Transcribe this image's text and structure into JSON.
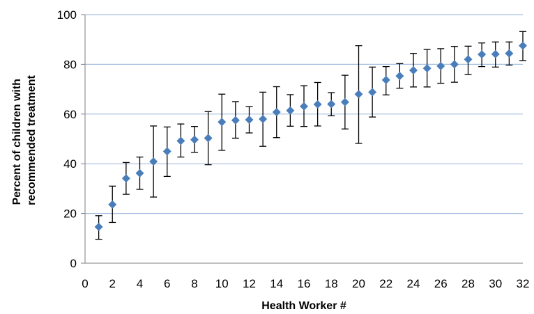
{
  "chart_data": {
    "type": "scatter",
    "title": "",
    "xlabel": "Health Worker #",
    "ylabel_lines": [
      "Percent of children with",
      "recommended treatment"
    ],
    "xlim": [
      0,
      32
    ],
    "ylim": [
      0,
      100
    ],
    "x_ticks": [
      0,
      2,
      4,
      6,
      8,
      10,
      12,
      14,
      16,
      18,
      20,
      22,
      24,
      26,
      28,
      30,
      32
    ],
    "y_ticks": [
      0,
      20,
      40,
      60,
      80,
      100
    ],
    "grid": "horizontal",
    "marker": "diamond",
    "marker_color": "#4a7ebb",
    "gridline_color": "#a7bfe0",
    "errorbar_color": "#000000",
    "x": [
      1,
      2,
      3,
      4,
      5,
      6,
      7,
      8,
      9,
      10,
      11,
      12,
      13,
      14,
      15,
      16,
      17,
      18,
      19,
      20,
      21,
      22,
      23,
      24,
      25,
      26,
      27,
      28,
      29,
      30,
      31,
      32
    ],
    "values": [
      14.6,
      23.6,
      34.1,
      36.2,
      40.9,
      45.0,
      49.2,
      49.7,
      50.3,
      56.8,
      57.5,
      57.7,
      58.0,
      60.8,
      61.4,
      63.1,
      63.9,
      64.0,
      64.8,
      68.0,
      68.8,
      73.7,
      75.3,
      77.6,
      78.4,
      79.3,
      80.0,
      82.0,
      84.0,
      84.1,
      84.4,
      87.5
    ],
    "error_low": [
      9.6,
      16.4,
      27.7,
      29.7,
      26.6,
      34.9,
      42.7,
      44.6,
      39.6,
      45.4,
      50.3,
      52.4,
      47.0,
      50.5,
      55.1,
      55.0,
      55.2,
      59.3,
      54.0,
      48.2,
      58.8,
      67.7,
      70.4,
      70.9,
      70.9,
      72.4,
      72.8,
      75.9,
      79.1,
      78.9,
      79.7,
      81.5
    ],
    "error_high": [
      19.1,
      31.0,
      40.5,
      42.7,
      55.2,
      54.8,
      56.0,
      55.0,
      61.0,
      68.0,
      65.0,
      63.0,
      68.8,
      71.0,
      67.8,
      71.4,
      72.7,
      68.6,
      75.6,
      87.5,
      78.9,
      79.1,
      80.3,
      84.4,
      86.0,
      86.3,
      87.2,
      87.3,
      88.6,
      89.0,
      89.0,
      93.2
    ]
  }
}
